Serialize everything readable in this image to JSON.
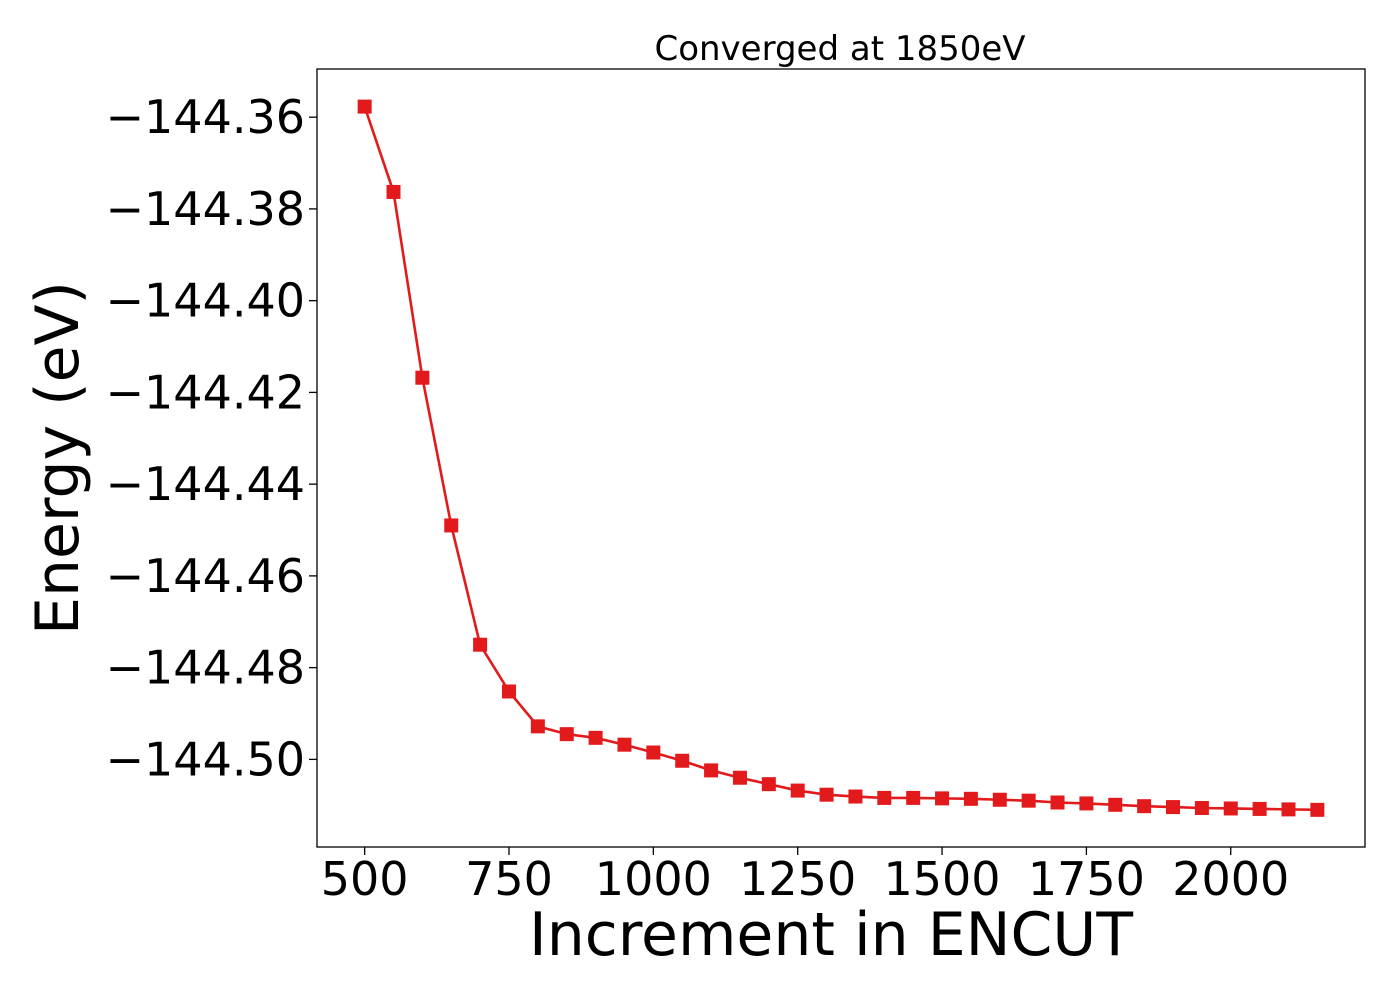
{
  "chart_data": {
    "type": "line",
    "title": "Converged at 1850eV",
    "xlabel": "Increment in ENCUT",
    "ylabel": "Energy (eV)",
    "xlim": [
      417.5,
      2232.5
    ],
    "ylim": [
      -144.5191,
      -144.3495
    ],
    "xticks": [
      500,
      750,
      1000,
      1250,
      1500,
      1750,
      2000
    ],
    "xtick_labels": [
      "500",
      "750",
      "1000",
      "1250",
      "1500",
      "1750",
      "2000"
    ],
    "yticks": [
      -144.36,
      -144.38,
      -144.4,
      -144.42,
      -144.44,
      -144.46,
      -144.48,
      -144.5
    ],
    "ytick_labels": [
      "−144.36",
      "−144.38",
      "−144.40",
      "−144.42",
      "−144.44",
      "−144.46",
      "−144.48",
      "−144.50"
    ],
    "grid": false,
    "series": [
      {
        "color": "#e31a1c",
        "marker": "square",
        "x": [
          500,
          550,
          600,
          650,
          700,
          750,
          800,
          850,
          900,
          950,
          1000,
          1050,
          1100,
          1150,
          1200,
          1250,
          1300,
          1350,
          1400,
          1450,
          1500,
          1550,
          1600,
          1650,
          1700,
          1750,
          1800,
          1850,
          1900,
          1950,
          2000,
          2050,
          2100,
          2150
        ],
        "y": [
          -144.3577,
          -144.3763,
          -144.4168,
          -144.449,
          -144.475,
          -144.4852,
          -144.4928,
          -144.4945,
          -144.4953,
          -144.4968,
          -144.4985,
          -144.5003,
          -144.5024,
          -144.504,
          -144.5054,
          -144.5068,
          -144.5077,
          -144.5081,
          -144.5084,
          -144.5084,
          -144.5085,
          -144.5086,
          -144.5088,
          -144.509,
          -144.5094,
          -144.5096,
          -144.5099,
          -144.5102,
          -144.5104,
          -144.5106,
          -144.5107,
          -144.5108,
          -144.5109,
          -144.511
        ]
      }
    ]
  }
}
